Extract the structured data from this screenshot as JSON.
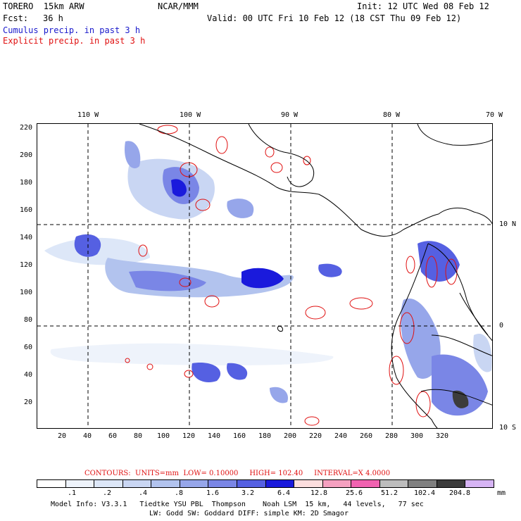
{
  "header": {
    "model": "TORERO  15km ARW",
    "org": "NCAR/MMM",
    "init": "Init: 12 UTC Wed 08 Feb 12",
    "fcst_label": "Fcst:",
    "fcst_value": "36 h",
    "valid": "Valid: 00 UTC Fri 10 Feb 12 (18 CST Thu 09 Feb 12)",
    "field1": "Cumulus precip. in past 3 h",
    "field2": "Explicit precip. in past 3 h"
  },
  "map": {
    "top_lon_labels": [
      "110 W",
      "100 W",
      "90 W",
      "80 W",
      "70 W"
    ],
    "right_lat_labels": [
      "10 N",
      "0",
      "10 S"
    ],
    "left_y_ticks": [
      "220",
      "200",
      "180",
      "160",
      "140",
      "120",
      "100",
      "80",
      "60",
      "40",
      "20"
    ],
    "bottom_x_ticks": [
      "20",
      "40",
      "60",
      "80",
      "100",
      "120",
      "140",
      "160",
      "180",
      "200",
      "220",
      "240",
      "260",
      "280",
      "300",
      "320"
    ]
  },
  "contours_line": {
    "contours_label": "CONTOURS:",
    "units": "UNITS=mm",
    "low": "LOW= 0.10000",
    "high": "HIGH= 102.40",
    "interval": "INTERVAL=X 4.0000"
  },
  "colorbar": {
    "colors": [
      "#ffffff",
      "#eef3fb",
      "#dde7f8",
      "#c9d6f3",
      "#b2c3ee",
      "#96a6ea",
      "#7a86e6",
      "#5560e2",
      "#1a1adc",
      "#fcdede",
      "#f5a0c0",
      "#f062b0",
      "#bdbdbd",
      "#808080",
      "#3c3c3c",
      "#d6b4f4"
    ],
    "labels": [
      ".1",
      ".2",
      ".4",
      ".8",
      "1.6",
      "3.2",
      "6.4",
      "12.8",
      "25.6",
      "51.2",
      "102.4",
      "204.8"
    ],
    "units": "mm"
  },
  "footer": {
    "line1": "Model Info: V3.3.1   Tiedtke YSU PBL  Thompson    Noah LSM  15 km,   44 levels,   77 sec",
    "line2": "LW: Godd SW: Goddard DIFF: simple KM: 2D Smagor"
  },
  "colors": {
    "cumulus_text": "#1a1acc",
    "explicit_text": "#e01010",
    "coastline": "#000000",
    "explicit_contour": "#e01010"
  }
}
